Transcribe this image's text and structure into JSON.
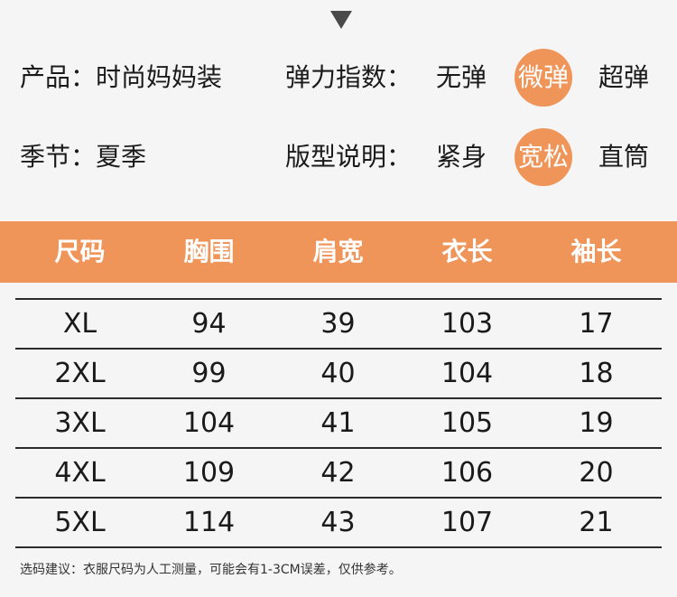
{
  "info": {
    "product_label": "产品：时尚妈妈装",
    "season_label": "季节：夏季",
    "elastic": {
      "label": "弹力指数：",
      "options": [
        "无弹",
        "微弹",
        "超弹"
      ],
      "selected": "微弹"
    },
    "fit": {
      "label": "版型说明：",
      "options": [
        "紧身",
        "宽松",
        "直筒"
      ],
      "selected": "宽松"
    }
  },
  "table": {
    "headers": [
      "尺码",
      "胸围",
      "肩宽",
      "衣长",
      "袖长"
    ],
    "rows": [
      [
        "XL",
        94,
        39,
        103,
        17
      ],
      [
        "2XL",
        99,
        40,
        104,
        18
      ],
      [
        "3XL",
        104,
        41,
        105,
        19
      ],
      [
        "4XL",
        109,
        42,
        106,
        20
      ],
      [
        "5XL",
        114,
        43,
        107,
        21
      ]
    ]
  },
  "note": "选码建议：衣服尺码为人工测量，可能会有1-3CM误差，仅供参考。",
  "colors": {
    "accent": "#f0955a",
    "background": "#f5f5f5",
    "text": "#1a1a1a"
  }
}
